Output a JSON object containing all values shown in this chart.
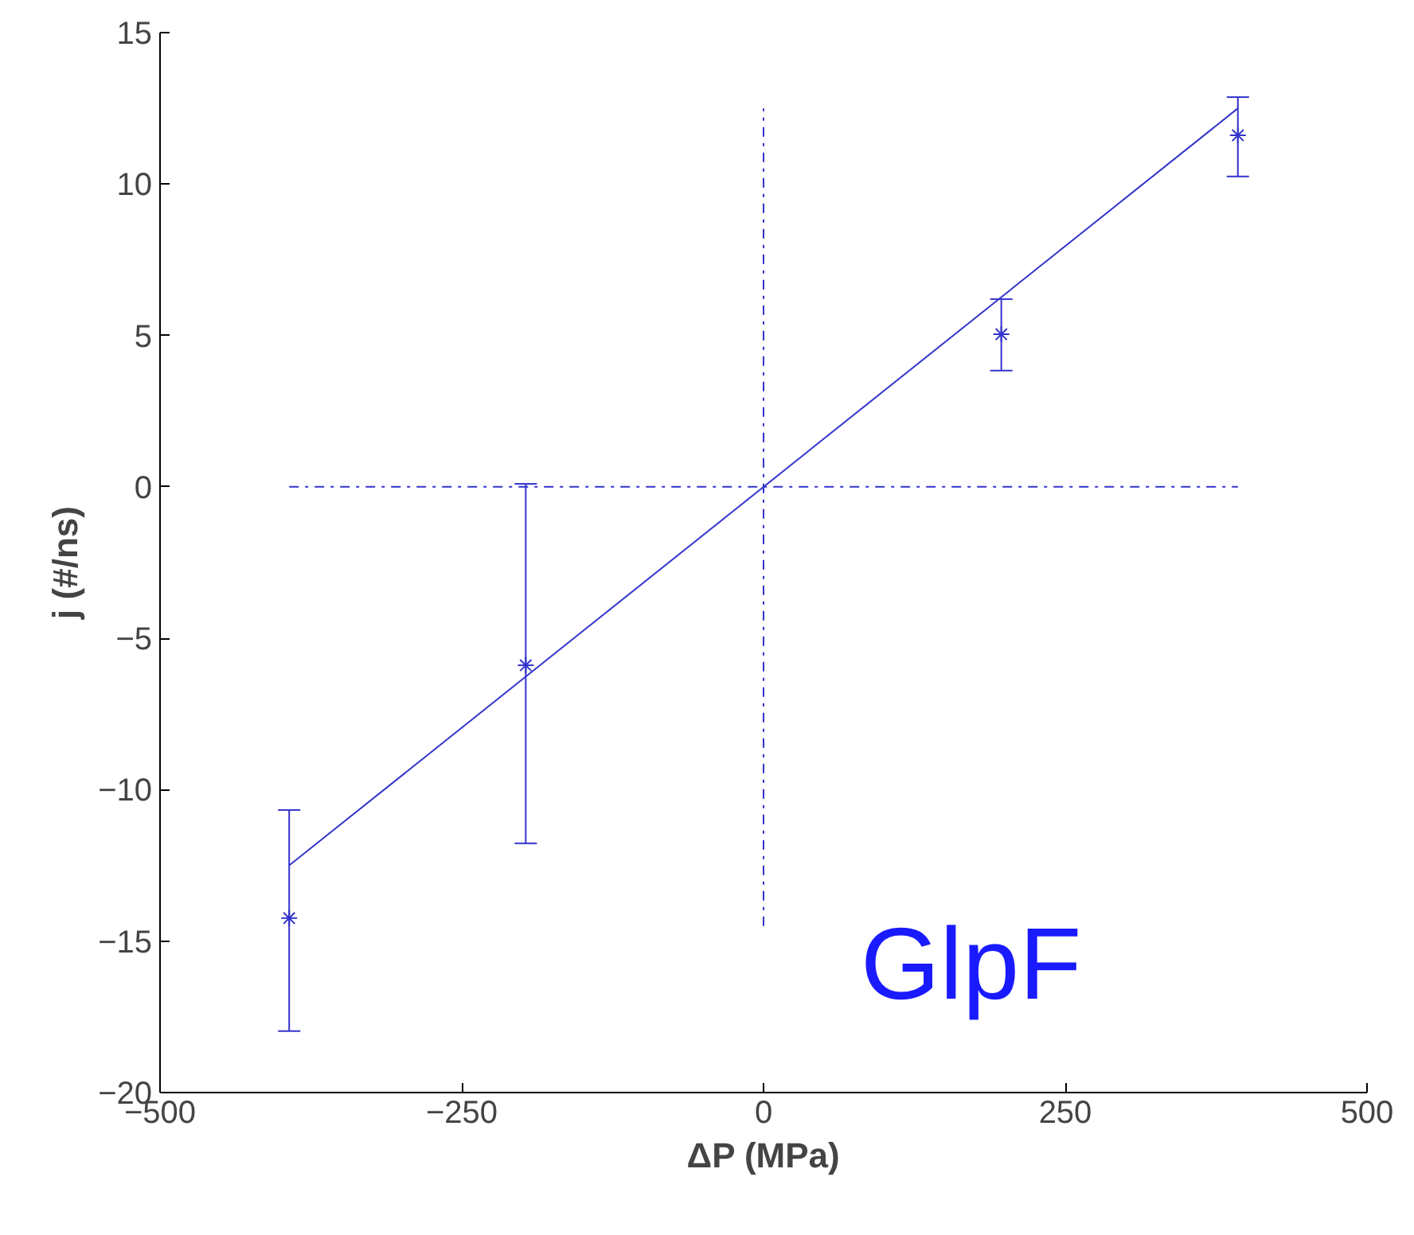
{
  "chart_data": {
    "type": "scatter",
    "xlabel": "ΔP (MPa)",
    "ylabel": "j (#/ns)",
    "xlim": [
      -500,
      500
    ],
    "xticks": [
      -500,
      -250,
      0,
      250,
      500
    ],
    "ylim": [
      -20,
      15
    ],
    "yticks": [
      -20,
      -15,
      -10,
      -5,
      0,
      5,
      10,
      15
    ],
    "grid": false,
    "series": [
      {
        "color": "#3333cc",
        "marker": "cross",
        "x": [
          -393,
          -197,
          197,
          393
        ],
        "values": [
          -14.24,
          -5.89,
          5.04,
          11.61
        ],
        "errors": [
          [
            -17.97,
            -10.67
          ],
          [
            -11.77,
            0.1
          ],
          [
            3.84,
            6.2
          ],
          [
            10.25,
            12.87
          ]
        ]
      },
      {
        "type": "line",
        "color": "#3333cc",
        "line_style": "solid",
        "x": [
          -393,
          393
        ],
        "values": [
          -12.5,
          12.5
        ]
      },
      {
        "type": "line",
        "color": "#3333cc",
        "line_style": "dashdot",
        "x": [
          -393,
          393
        ],
        "values": [
          0,
          0
        ]
      },
      {
        "type": "line",
        "color": "#3333cc",
        "line_style": "dashdot",
        "x": [
          0,
          0
        ],
        "values": [
          -14.5,
          12.5
        ]
      }
    ],
    "annotations": [
      "GlpF"
    ]
  }
}
